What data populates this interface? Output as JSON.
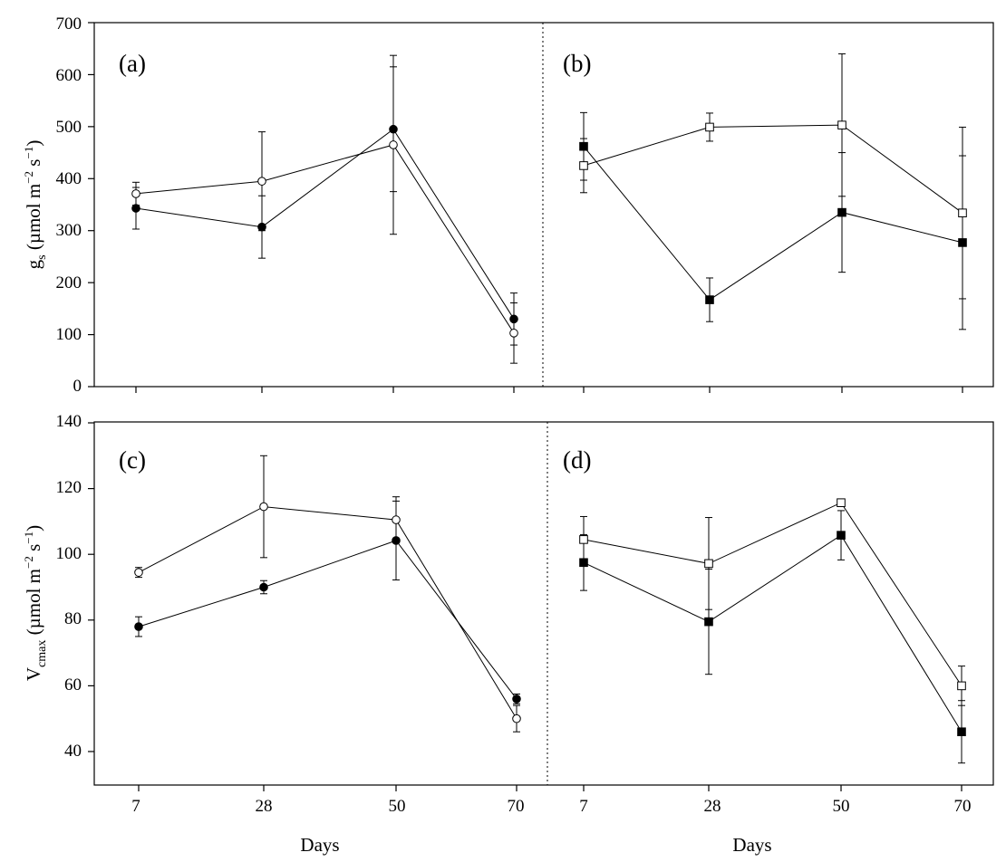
{
  "chart_data": [
    {
      "type": "line",
      "panel": "(a)",
      "ylabel": "g_s (µmol m⁻² s⁻¹)",
      "ylim": [
        0,
        700
      ],
      "yticks": [
        0,
        100,
        200,
        300,
        400,
        500,
        600,
        700
      ],
      "x": [
        7,
        28,
        50,
        70
      ],
      "series": [
        {
          "name": "filled circles",
          "marker": "circle",
          "filled": true,
          "values": [
            343,
            307,
            495,
            130
          ],
          "errors": [
            40,
            60,
            120,
            50
          ]
        },
        {
          "name": "open circles",
          "marker": "circle",
          "filled": false,
          "values": [
            371,
            395,
            465,
            103
          ],
          "errors": [
            22,
            95,
            172,
            58
          ]
        }
      ]
    },
    {
      "type": "line",
      "panel": "(b)",
      "ylim": [
        0,
        700
      ],
      "x": [
        7,
        28,
        50,
        70
      ],
      "series": [
        {
          "name": "filled squares",
          "marker": "square",
          "filled": true,
          "values": [
            462,
            167,
            335,
            277
          ],
          "errors": [
            65,
            42,
            115,
            167
          ]
        },
        {
          "name": "open squares",
          "marker": "square",
          "filled": false,
          "values": [
            425,
            499,
            503,
            334
          ],
          "errors": [
            52,
            27,
            137,
            165
          ]
        }
      ]
    },
    {
      "type": "line",
      "panel": "(c)",
      "ylabel": "V_cmax (µmol m⁻² s⁻¹)",
      "xlabel": "Days",
      "ylim": [
        30,
        140
      ],
      "yticks": [
        40,
        60,
        80,
        100,
        120,
        140
      ],
      "x": [
        7,
        28,
        50,
        70
      ],
      "series": [
        {
          "name": "filled circles",
          "marker": "circle",
          "filled": true,
          "values": [
            78,
            90,
            104.2,
            56
          ],
          "errors": [
            3,
            2,
            12,
            1.5
          ]
        },
        {
          "name": "open circles",
          "marker": "circle",
          "filled": false,
          "values": [
            94.5,
            114.5,
            110.5,
            50
          ],
          "errors": [
            1.5,
            15.5,
            7,
            4
          ]
        }
      ]
    },
    {
      "type": "line",
      "panel": "(d)",
      "xlabel": "Days",
      "ylim": [
        30,
        140
      ],
      "x": [
        7,
        28,
        50,
        70
      ],
      "series": [
        {
          "name": "filled squares",
          "marker": "square",
          "filled": true,
          "values": [
            97.5,
            79.5,
            105.8,
            46
          ],
          "errors": [
            8.5,
            16,
            7.5,
            9.5
          ]
        },
        {
          "name": "open squares",
          "marker": "square",
          "filled": false,
          "values": [
            104.5,
            97.2,
            115.7,
            60
          ],
          "errors": [
            7,
            14,
            1,
            6
          ]
        }
      ]
    }
  ],
  "labels": {
    "panel_a": "(a)",
    "panel_b": "(b)",
    "panel_c": "(c)",
    "panel_d": "(d)",
    "ylabel_top": {
      "main": "g",
      "sub": "s",
      "unit_prefix": " (µmol m",
      "exp1": "−2",
      "mid": " s",
      "exp2": "−1",
      "close": ")"
    },
    "ylabel_bottom": {
      "main": "V",
      "sub": "cmax",
      "unit_prefix": " (µmol m",
      "exp1": "−2",
      "mid": " s",
      "exp2": "−1",
      "close": ")"
    },
    "xlabel_left": "Days",
    "xlabel_right": "Days",
    "xtick_labels": [
      "7",
      "28",
      "50",
      "70"
    ],
    "ytick_top": [
      "0",
      "100",
      "200",
      "300",
      "400",
      "500",
      "600",
      "700"
    ],
    "ytick_bottom": [
      "40",
      "60",
      "80",
      "100",
      "120",
      "140"
    ]
  }
}
